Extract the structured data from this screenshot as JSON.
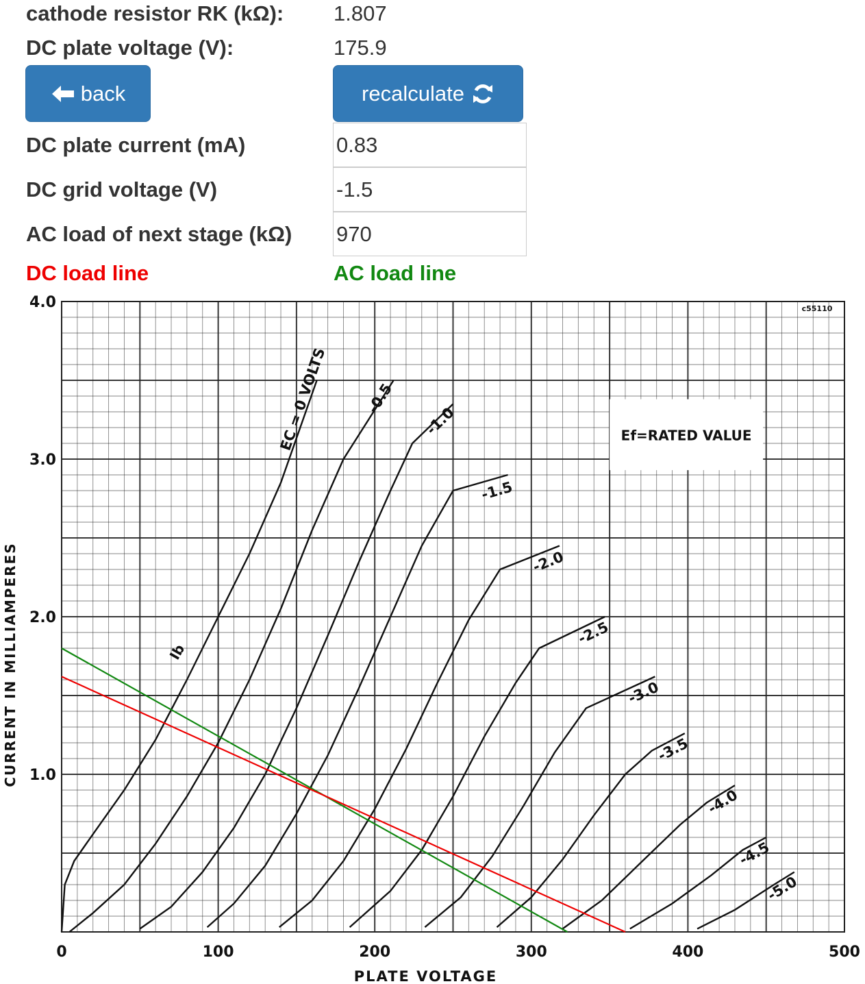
{
  "form": {
    "cathode_label": "cathode resistor RK (kΩ):",
    "cathode_value": "1.807",
    "plate_voltage_label": "DC plate voltage (V):",
    "plate_voltage_value": "175.9",
    "back_label": "back",
    "recalc_label": "recalculate",
    "plate_current_label": "DC plate current (mA)",
    "plate_current_value": "0.83",
    "grid_voltage_label": "DC grid voltage (V)",
    "grid_voltage_value": "-1.5",
    "ac_load_label": "AC load of next stage (kΩ)",
    "ac_load_value": "970"
  },
  "legend": {
    "dc_label": "DC load line",
    "dc_color": "#ee0000",
    "ac_label": "AC load line",
    "ac_color": "#118811"
  },
  "icons": {
    "back": "arrow-left-icon",
    "recalc": "refresh-icon"
  },
  "chart_data": {
    "type": "line",
    "xlabel": "PLATE VOLTAGE",
    "ylabel": "CURRENT IN MILLIAMPERES",
    "xlim": [
      0,
      500
    ],
    "ylim": [
      0,
      4.0
    ],
    "x_ticks": [
      "0",
      "100",
      "200",
      "300",
      "400",
      "500"
    ],
    "y_ticks": [
      "1.0",
      "2.0",
      "3.0",
      "4.0"
    ],
    "grid": true,
    "annotation": "Ef=RATED VALUE",
    "corner_code": "c55110",
    "ib_label": "Ib",
    "curves": [
      {
        "label": "EC = 0 VOLTS",
        "points": [
          [
            0,
            0
          ],
          [
            2,
            0.3
          ],
          [
            8,
            0.45
          ],
          [
            20,
            0.62
          ],
          [
            40,
            0.9
          ],
          [
            60,
            1.22
          ],
          [
            80,
            1.6
          ],
          [
            100,
            2.0
          ],
          [
            120,
            2.4
          ],
          [
            140,
            2.85
          ],
          [
            163,
            3.5
          ]
        ]
      },
      {
        "label": "-0.5",
        "points": [
          [
            5,
            0
          ],
          [
            20,
            0.12
          ],
          [
            40,
            0.3
          ],
          [
            60,
            0.56
          ],
          [
            80,
            0.86
          ],
          [
            100,
            1.2
          ],
          [
            120,
            1.6
          ],
          [
            140,
            2.05
          ],
          [
            160,
            2.55
          ],
          [
            180,
            3.0
          ],
          [
            212,
            3.5
          ]
        ]
      },
      {
        "label": "-1.0",
        "points": [
          [
            50,
            0.02
          ],
          [
            70,
            0.16
          ],
          [
            90,
            0.38
          ],
          [
            110,
            0.66
          ],
          [
            130,
            1.0
          ],
          [
            150,
            1.42
          ],
          [
            170,
            1.88
          ],
          [
            190,
            2.35
          ],
          [
            210,
            2.8
          ],
          [
            224,
            3.1
          ],
          [
            250,
            3.35
          ]
        ]
      },
      {
        "label": "-1.5",
        "points": [
          [
            93,
            0.03
          ],
          [
            110,
            0.18
          ],
          [
            130,
            0.42
          ],
          [
            150,
            0.75
          ],
          [
            170,
            1.12
          ],
          [
            190,
            1.55
          ],
          [
            210,
            2.0
          ],
          [
            230,
            2.45
          ],
          [
            250,
            2.8
          ],
          [
            285,
            2.9
          ]
        ]
      },
      {
        "label": "-2.0",
        "points": [
          [
            139,
            0.03
          ],
          [
            160,
            0.2
          ],
          [
            180,
            0.45
          ],
          [
            200,
            0.78
          ],
          [
            220,
            1.16
          ],
          [
            240,
            1.58
          ],
          [
            260,
            1.98
          ],
          [
            280,
            2.3
          ],
          [
            318,
            2.45
          ]
        ]
      },
      {
        "label": "-2.5",
        "points": [
          [
            184,
            0.03
          ],
          [
            210,
            0.26
          ],
          [
            230,
            0.52
          ],
          [
            250,
            0.86
          ],
          [
            270,
            1.24
          ],
          [
            290,
            1.58
          ],
          [
            305,
            1.8
          ],
          [
            347,
            2.0
          ]
        ]
      },
      {
        "label": "-3.0",
        "points": [
          [
            232,
            0.03
          ],
          [
            255,
            0.22
          ],
          [
            275,
            0.48
          ],
          [
            295,
            0.8
          ],
          [
            315,
            1.14
          ],
          [
            335,
            1.42
          ],
          [
            379,
            1.62
          ]
        ]
      },
      {
        "label": "-3.5",
        "points": [
          [
            278,
            0.03
          ],
          [
            300,
            0.22
          ],
          [
            320,
            0.46
          ],
          [
            340,
            0.74
          ],
          [
            360,
            1.0
          ],
          [
            377,
            1.15
          ],
          [
            398,
            1.26
          ]
        ]
      },
      {
        "label": "-4.0",
        "points": [
          [
            320,
            0.02
          ],
          [
            345,
            0.2
          ],
          [
            370,
            0.44
          ],
          [
            395,
            0.68
          ],
          [
            412,
            0.82
          ],
          [
            430,
            0.93
          ]
        ]
      },
      {
        "label": "-4.5",
        "points": [
          [
            363,
            0.02
          ],
          [
            390,
            0.18
          ],
          [
            415,
            0.36
          ],
          [
            435,
            0.52
          ],
          [
            450,
            0.6
          ]
        ]
      },
      {
        "label": "-5.0",
        "points": [
          [
            406,
            0.02
          ],
          [
            430,
            0.14
          ],
          [
            455,
            0.3
          ],
          [
            468,
            0.38
          ]
        ]
      }
    ],
    "dc_load_line": [
      [
        0,
        1.62
      ],
      [
        360,
        0
      ]
    ],
    "ac_load_line": [
      [
        0,
        1.8
      ],
      [
        323,
        0
      ]
    ]
  }
}
